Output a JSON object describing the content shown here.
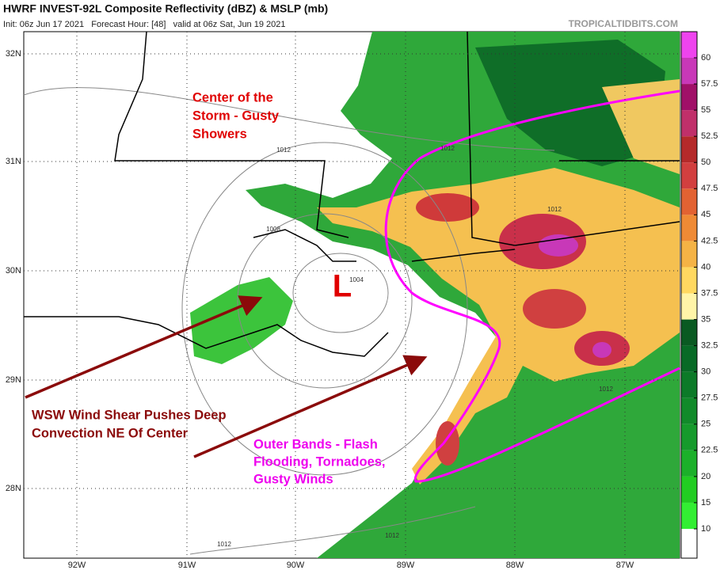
{
  "header": {
    "title": "HWRF INVEST-92L Composite Reflectivity (dBZ) & MSLP (mb)",
    "subtitle": "Init: 06z Jun 17 2021   Forecast Hour: [48]   valid at 06z Sat, Jun 19 2021",
    "credit": "TROPICALTIDBITS.COM"
  },
  "map": {
    "lat_labels": [
      "32N",
      "31N",
      "30N",
      "29N",
      "28N"
    ],
    "lon_labels": [
      "92W",
      "91W",
      "90W",
      "89W",
      "88W",
      "87W"
    ],
    "low_label": "L",
    "isobar_labels": [
      "1012",
      "1012",
      "1008",
      "1004",
      "1012",
      "1012",
      "1012",
      "1012"
    ]
  },
  "annotations": [
    {
      "lines": [
        "Center of the",
        "Storm - Gusty",
        "Showers"
      ],
      "color": "#e00000"
    },
    {
      "lines": [
        "WSW Wind Shear Pushes Deep",
        "Convection NE Of Center"
      ],
      "color": "#8b0a0a"
    },
    {
      "lines": [
        "Outer Bands - Flash",
        "Flooding, Tornadoes,",
        "Gusty Winds"
      ],
      "color": "#ee00ee"
    }
  ],
  "colorbar": {
    "labels": [
      10,
      15,
      20,
      22.5,
      25,
      27.5,
      30,
      32.5,
      35,
      37.5,
      40,
      42.5,
      45,
      47.5,
      50,
      52.5,
      55,
      57.5,
      60
    ],
    "colors": [
      "#ffffff",
      "#33ee33",
      "#22cc22",
      "#1cb02a",
      "#169a2c",
      "#118a2a",
      "#0c7a28",
      "#086a26",
      "#0a5a22",
      "#fff4a8",
      "#ffd860",
      "#f5b345",
      "#ef8a35",
      "#e26232",
      "#d23f3f",
      "#b52a2a",
      "#c0306a",
      "#a01068",
      "#c838b8",
      "#ee44ee"
    ]
  }
}
